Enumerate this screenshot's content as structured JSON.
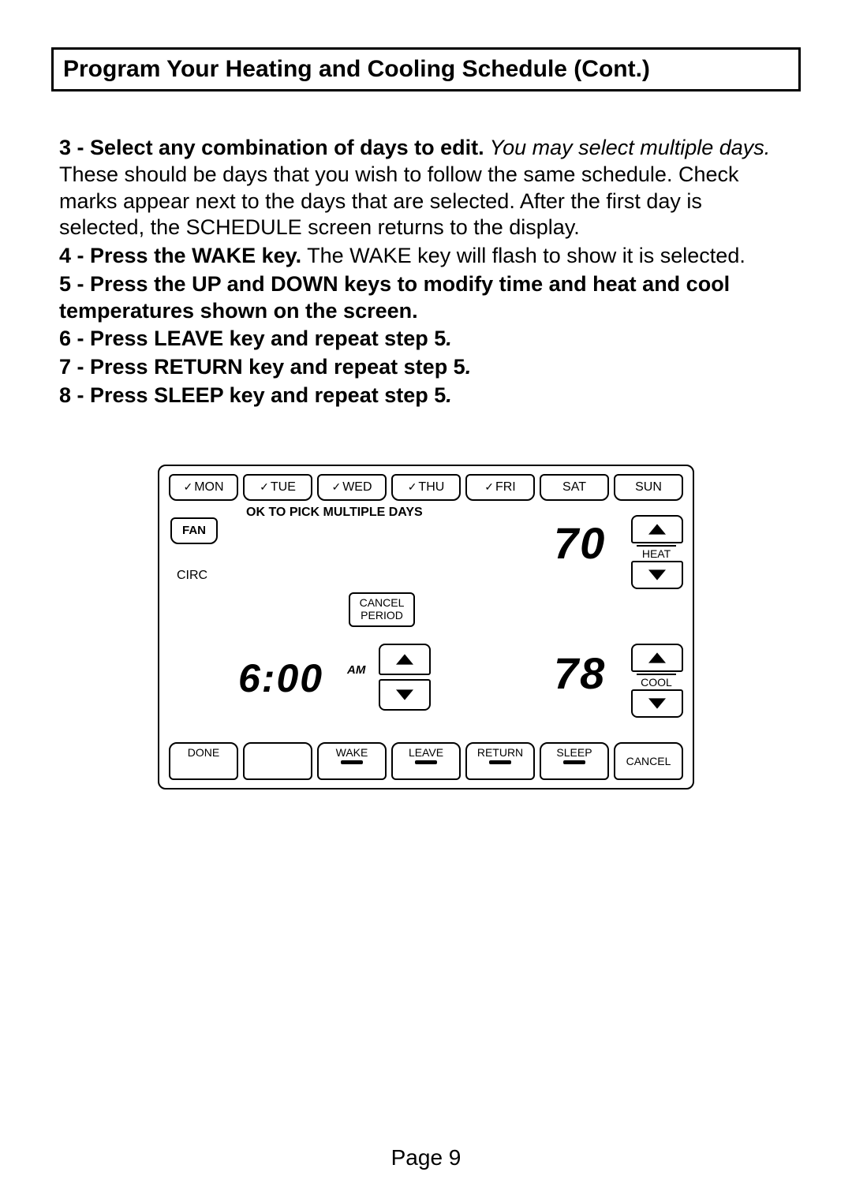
{
  "title": "Program Your Heating and Cooling Schedule (Cont.)",
  "steps": {
    "s3_bold": "3 - Select any combination of days to edit.",
    "s3_ital": " You may select multiple days.",
    "s3_rest": " These should be days that you wish to follow the same schedule. Check marks appear next to the days that are selected. After the first day is selected, the SCHEDULE screen returns to the display.",
    "s4_bold": "4 - Press the WAKE key.",
    "s4_rest": " The WAKE key will flash to show it is selected.",
    "s5": "5 - Press the UP and DOWN keys to modify time and heat and cool temperatures shown on the screen.",
    "s6": "6 - Press LEAVE key and repeat step 5",
    "s7": "7 - Press RETURN key and repeat step 5",
    "s8": "8 - Press SLEEP key and repeat step 5",
    "dot": "."
  },
  "thermostat": {
    "days": [
      {
        "label": "MON",
        "checked": true
      },
      {
        "label": "TUE",
        "checked": true
      },
      {
        "label": "WED",
        "checked": true
      },
      {
        "label": "THU",
        "checked": true
      },
      {
        "label": "FRI",
        "checked": true
      },
      {
        "label": "SAT",
        "checked": false
      },
      {
        "label": "SUN",
        "checked": false
      }
    ],
    "message": "OK TO PICK MULTIPLE DAYS",
    "fan": "FAN",
    "circ": "CIRC",
    "cancel_period_l1": "CANCEL",
    "cancel_period_l2": "PERIOD",
    "heat_temp": "70",
    "cool_temp": "78",
    "time": "6:00",
    "ampm": "AM",
    "heat_label": "HEAT",
    "cool_label": "COOL",
    "bottom": [
      "DONE",
      "",
      "WAKE",
      "LEAVE",
      "RETURN",
      "SLEEP",
      "CANCEL"
    ],
    "bottom_bars": [
      false,
      false,
      true,
      true,
      true,
      true,
      false
    ]
  },
  "page": "Page 9",
  "colors": {
    "border": "#000000",
    "background": "#ffffff",
    "text": "#000000"
  }
}
